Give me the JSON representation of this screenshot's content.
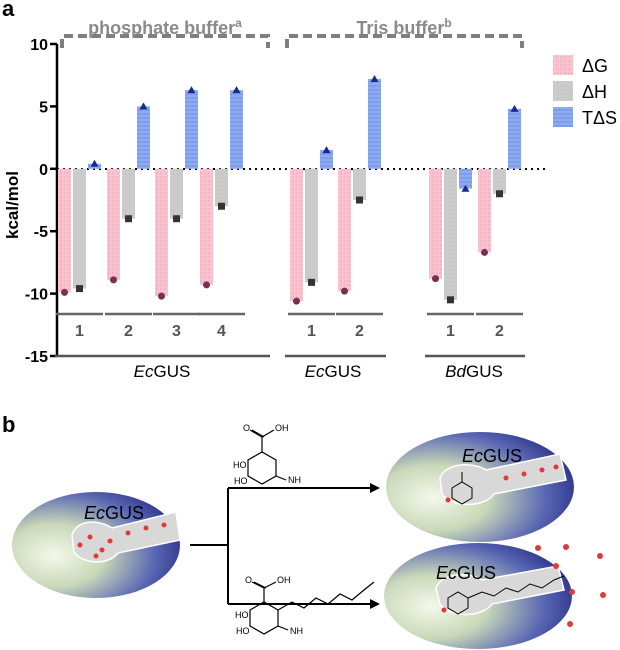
{
  "panel_a_label": "a",
  "panel_b_label": "b",
  "colors": {
    "dG": "#f7b8c6",
    "dH": "#c8c8c8",
    "TdS": "#8aa8ee",
    "dG_marker": "#7a3050",
    "dH_marker": "#333333",
    "TdS_marker": "#1a2a8a",
    "bracket": "#777777",
    "underline": "#666666"
  },
  "chart_data": {
    "type": "bar",
    "ylabel": "kcal/mol",
    "ylim": [
      -15,
      10
    ],
    "yticks": [
      "10",
      "5",
      "0",
      "-5",
      "-10",
      "-15"
    ],
    "legend": [
      "ΔG",
      "ΔH",
      "TΔS"
    ],
    "legend_position": "top-right",
    "grid": false,
    "zero_line": "dotted",
    "buffers": [
      {
        "label_main": "phosphate buffer",
        "label_sup": "a"
      },
      {
        "label_main": "Tris buffer",
        "label_sup": "b"
      }
    ],
    "groups": [
      {
        "label_italic": "Ec",
        "label_rest": "GUS",
        "buffer": 0
      },
      {
        "label_italic": "Ec",
        "label_rest": "GUS",
        "buffer": 1
      },
      {
        "label_italic": "Bd",
        "label_rest": "GUS",
        "buffer": 1
      }
    ],
    "categories": [
      {
        "label": "1",
        "group": 0,
        "dG": -9.9,
        "dH": -9.6,
        "TdS": 0.4
      },
      {
        "label": "2",
        "group": 0,
        "dG": -8.9,
        "dH": -4.0,
        "TdS": 5.0
      },
      {
        "label": "3",
        "group": 0,
        "dG": -10.2,
        "dH": -4.0,
        "TdS": 6.3
      },
      {
        "label": "4",
        "group": 0,
        "dG": -9.3,
        "dH": -3.0,
        "TdS": 6.3
      },
      {
        "label": "1",
        "group": 1,
        "dG": -10.6,
        "dH": -9.1,
        "TdS": 1.5
      },
      {
        "label": "2",
        "group": 1,
        "dG": -9.8,
        "dH": -2.5,
        "TdS": 7.2
      },
      {
        "label": "1",
        "group": 2,
        "dG": -8.8,
        "dH": -10.5,
        "TdS": -1.6
      },
      {
        "label": "2",
        "group": 2,
        "dG": -6.7,
        "dH": -2.0,
        "TdS": 4.8
      }
    ]
  },
  "panel_b": {
    "enzyme_italic": "Ec",
    "enzyme_rest": "GUS",
    "ligand_top": {
      "cooh": "OH",
      "ho_top": "HO",
      "ho_bottom": "HO",
      "nh": "NH",
      "o": "O"
    },
    "ligand_bottom": {
      "cooh": "OH",
      "ho_top": "HO",
      "ho_bottom": "HO",
      "nh": "NH",
      "o": "O"
    }
  }
}
